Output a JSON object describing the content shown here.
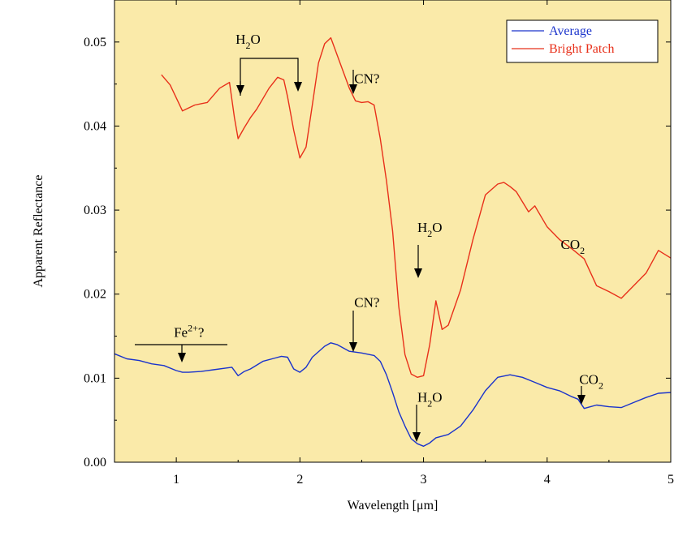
{
  "chart_data": {
    "type": "line",
    "title": "",
    "xlabel": "Wavelength [μm]",
    "ylabel": "Apparent Reflectance",
    "xlim": [
      0.5,
      5.0
    ],
    "ylim": [
      0.0,
      0.055
    ],
    "x_ticks": [
      1,
      2,
      3,
      4,
      5
    ],
    "x_tick_labels": [
      "1",
      "2",
      "3",
      "4",
      "5"
    ],
    "y_ticks": [
      0.0,
      0.01,
      0.02,
      0.03,
      0.04,
      0.05
    ],
    "y_tick_labels": [
      "0.00",
      "0.01",
      "0.02",
      "0.03",
      "0.04",
      "0.05"
    ],
    "grid": false,
    "legend_position": "top-right",
    "background_color": "#FAEAA9",
    "series": [
      {
        "name": "Average",
        "color": "#1A33CC",
        "x": [
          0.5,
          0.6,
          0.7,
          0.8,
          0.9,
          1.0,
          1.05,
          1.1,
          1.2,
          1.3,
          1.4,
          1.45,
          1.5,
          1.55,
          1.6,
          1.7,
          1.8,
          1.85,
          1.9,
          1.95,
          2.0,
          2.05,
          2.1,
          2.2,
          2.25,
          2.3,
          2.4,
          2.5,
          2.6,
          2.65,
          2.7,
          2.75,
          2.8,
          2.85,
          2.9,
          2.95,
          3.0,
          3.05,
          3.1,
          3.2,
          3.3,
          3.4,
          3.5,
          3.6,
          3.7,
          3.8,
          3.9,
          4.0,
          4.1,
          4.2,
          4.25,
          4.3,
          4.35,
          4.4,
          4.5,
          4.6,
          4.7,
          4.8,
          4.9,
          5.0
        ],
        "y": [
          0.0129,
          0.0123,
          0.0121,
          0.0117,
          0.0115,
          0.0109,
          0.0107,
          0.0107,
          0.0108,
          0.011,
          0.0112,
          0.0113,
          0.0103,
          0.0108,
          0.0111,
          0.012,
          0.0124,
          0.0126,
          0.0125,
          0.0111,
          0.0107,
          0.0113,
          0.0125,
          0.0138,
          0.0142,
          0.014,
          0.0132,
          0.013,
          0.0127,
          0.012,
          0.0104,
          0.0083,
          0.006,
          0.0043,
          0.0028,
          0.0022,
          0.0019,
          0.0023,
          0.0029,
          0.0033,
          0.0043,
          0.0062,
          0.0085,
          0.0101,
          0.0104,
          0.0101,
          0.0095,
          0.0089,
          0.0085,
          0.0078,
          0.0075,
          0.0064,
          0.0066,
          0.0068,
          0.0066,
          0.0065,
          0.0071,
          0.0077,
          0.0082,
          0.0083
        ]
      },
      {
        "name": "Bright Patch",
        "color": "#E8301A",
        "x": [
          0.88,
          0.95,
          1.05,
          1.15,
          1.25,
          1.35,
          1.43,
          1.47,
          1.5,
          1.55,
          1.6,
          1.65,
          1.75,
          1.82,
          1.87,
          1.9,
          1.95,
          2.0,
          2.05,
          2.1,
          2.15,
          2.2,
          2.25,
          2.3,
          2.35,
          2.4,
          2.45,
          2.5,
          2.55,
          2.6,
          2.65,
          2.7,
          2.75,
          2.8,
          2.85,
          2.9,
          2.95,
          3.0,
          3.05,
          3.1,
          3.15,
          3.2,
          3.3,
          3.4,
          3.5,
          3.6,
          3.65,
          3.7,
          3.75,
          3.8,
          3.85,
          3.9,
          4.0,
          4.1,
          4.2,
          4.3,
          4.4,
          4.5,
          4.55,
          4.6,
          4.7,
          4.8,
          4.9,
          5.0
        ],
        "y": [
          0.0461,
          0.0449,
          0.0418,
          0.0425,
          0.0428,
          0.0445,
          0.0452,
          0.041,
          0.0385,
          0.0398,
          0.041,
          0.042,
          0.0445,
          0.0458,
          0.0455,
          0.0435,
          0.0395,
          0.0362,
          0.0375,
          0.0425,
          0.0475,
          0.0498,
          0.0505,
          0.0485,
          0.0465,
          0.0445,
          0.043,
          0.0428,
          0.0429,
          0.0425,
          0.0385,
          0.0335,
          0.0275,
          0.0185,
          0.0128,
          0.0105,
          0.0101,
          0.0103,
          0.014,
          0.0192,
          0.0158,
          0.0163,
          0.0205,
          0.0265,
          0.0318,
          0.0331,
          0.0333,
          0.0328,
          0.0322,
          0.031,
          0.0298,
          0.0305,
          0.028,
          0.0265,
          0.0254,
          0.0242,
          0.021,
          0.0203,
          0.0199,
          0.0195,
          0.021,
          0.0225,
          0.0252,
          0.0243
        ]
      }
    ],
    "annotations": [
      {
        "text": "H",
        "sub": "2",
        "after": "O",
        "x": 1.48,
        "y": 0.0498
      },
      {
        "text": "CN?",
        "x": 2.44,
        "y": 0.0451
      },
      {
        "text": "H",
        "sub": "2",
        "after": "O",
        "x": 2.95,
        "y": 0.0274
      },
      {
        "text": "CO",
        "sub": "2",
        "x": 4.11,
        "y": 0.0254
      },
      {
        "text": "Fe",
        "sup": "2+",
        "after": "?",
        "x": 0.98,
        "y": 0.0149
      },
      {
        "text": "CN?",
        "x": 2.44,
        "y": 0.0185
      },
      {
        "text": "H",
        "sub": "2",
        "after": "O",
        "x": 2.95,
        "y": 0.0072
      },
      {
        "text": "CO",
        "sub": "2",
        "x": 4.26,
        "y": 0.0093
      }
    ]
  }
}
